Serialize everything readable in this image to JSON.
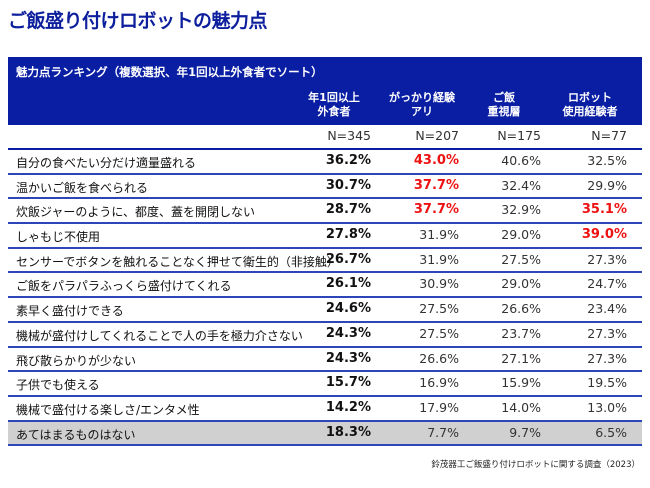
{
  "title": "ご飯盛り付けロボットの魅力点",
  "table": {
    "caption": "魅力点ランキング（複数選択、年1回以上外食者でソート）",
    "columns": [
      "年1回以上\n外食者",
      "がっかり経験\nアリ",
      "ご飯\n重視層",
      "ロボット\n使用経験者"
    ],
    "n": [
      "N=345",
      "N=207",
      "N=175",
      "N=77"
    ],
    "highlight_color": "#ee1111",
    "rows": [
      {
        "label": "自分の食べたい分だけ適量盛れる",
        "values": [
          "36.2%",
          "43.0%",
          "40.6%",
          "32.5%"
        ],
        "red": [
          1
        ]
      },
      {
        "label": "温かいご飯を食べられる",
        "values": [
          "30.7%",
          "37.7%",
          "32.4%",
          "29.9%"
        ],
        "red": [
          1
        ]
      },
      {
        "label": "炊飯ジャーのように、都度、蓋を開閉しない",
        "values": [
          "28.7%",
          "37.7%",
          "32.9%",
          "35.1%"
        ],
        "red": [
          1,
          3
        ]
      },
      {
        "label": "しゃもじ不使用",
        "values": [
          "27.8%",
          "31.9%",
          "29.0%",
          "39.0%"
        ],
        "red": [
          3
        ]
      },
      {
        "label": "センサーでボタンを触れることなく押せて衛生的（非接触）",
        "values": [
          "26.7%",
          "31.9%",
          "27.5%",
          "27.3%"
        ],
        "red": []
      },
      {
        "label": "ご飯をパラパラふっくら盛付けてくれる",
        "values": [
          "26.1%",
          "30.9%",
          "29.0%",
          "24.7%"
        ],
        "red": []
      },
      {
        "label": "素早く盛付けできる",
        "values": [
          "24.6%",
          "27.5%",
          "26.6%",
          "23.4%"
        ],
        "red": []
      },
      {
        "label": "機械が盛付けしてくれることで人の手を極力介さない",
        "values": [
          "24.3%",
          "27.5%",
          "23.7%",
          "27.3%"
        ],
        "red": []
      },
      {
        "label": "飛び散らかりが少ない",
        "values": [
          "24.3%",
          "26.6%",
          "27.1%",
          "27.3%"
        ],
        "red": []
      },
      {
        "label": "子供でも使える",
        "values": [
          "15.7%",
          "16.9%",
          "15.9%",
          "19.5%"
        ],
        "red": []
      },
      {
        "label": "機械で盛付ける楽しさ/エンタメ性",
        "values": [
          "14.2%",
          "17.9%",
          "14.0%",
          "13.0%"
        ],
        "red": []
      },
      {
        "label": "あてはまるものはない",
        "values": [
          "18.3%",
          "7.7%",
          "9.7%",
          "6.5%"
        ],
        "red": [],
        "gray": true
      }
    ]
  },
  "footer": "鈴茂器工ご飯盛り付けロボットに関する調査（2023）"
}
